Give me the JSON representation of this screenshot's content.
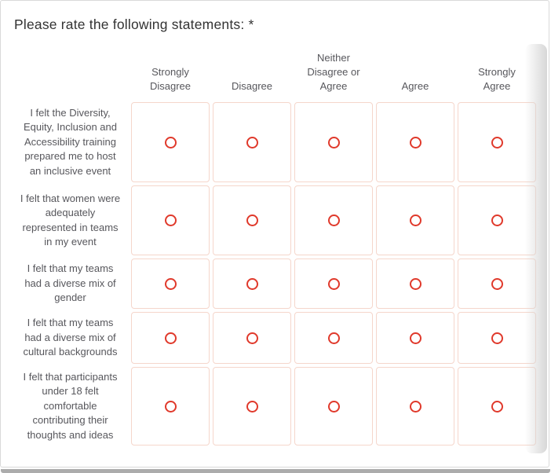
{
  "question": {
    "title": "Please rate the following statements: *"
  },
  "matrix": {
    "columns": [
      "Strongly Disagree",
      "Disagree",
      "Neither Disagree or Agree",
      "Agree",
      "Strongly Agree"
    ],
    "rows": [
      {
        "label": "I felt the Diversity, Equity, Inclusion and Accessibility  training prepared me to host an inclusive event",
        "selected": null
      },
      {
        "label": "I felt that women were adequately represented in teams in my event",
        "selected": null
      },
      {
        "label": "I felt that my teams had a diverse mix of gender",
        "selected": null
      },
      {
        "label": "I felt that my teams had a diverse mix of cultural backgrounds",
        "selected": null
      },
      {
        "label": "I felt that participants under 18 felt comfortable contributing their thoughts and ideas",
        "selected": null
      }
    ]
  },
  "icons": {
    "radio_unselected": "circle-outline"
  },
  "colors": {
    "radio": "#e0392b",
    "cell_border": "#f5d6cb",
    "body_text": "#57575c",
    "title_text": "#333333",
    "card_border": "#d9d9d9",
    "bottom_strip": "#acacac"
  }
}
